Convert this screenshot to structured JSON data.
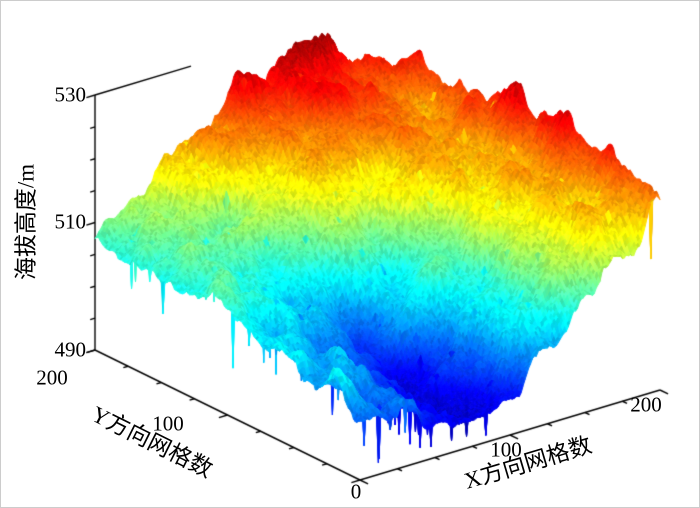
{
  "figure": {
    "background": "#ffffff",
    "border_color": "#cccccc"
  },
  "chart_data": {
    "type": "surface",
    "title": "",
    "xlabel": "X方向网格数",
    "ylabel": "Y方向网格数",
    "zlabel": "海拔高度/m",
    "xlim": [
      0,
      200
    ],
    "ylim": [
      0,
      200
    ],
    "zlim": [
      490,
      530
    ],
    "x_ticks": [
      0,
      100,
      200
    ],
    "y_ticks": [
      0,
      100,
      200
    ],
    "z_ticks": [
      490,
      510,
      530
    ],
    "x_minor_ticks": [
      25,
      50,
      75,
      125,
      150,
      175
    ],
    "y_minor_ticks": [
      25,
      50,
      75,
      125,
      150,
      175
    ],
    "z_minor_ticks": [
      495,
      500,
      505,
      515,
      520,
      525
    ],
    "x_tick_labels": [
      "0",
      "100",
      "200"
    ],
    "y_tick_labels": [
      "200",
      "100"
    ],
    "z_tick_labels": [
      "490",
      "510",
      "530"
    ],
    "colormap": "jet",
    "legend": "none",
    "grid": "off",
    "surface": {
      "grid_order": "rows y=0(front) to y=200(back), cols x=0 to x=200, 25-grid spacing, values in m",
      "elevation_samples": [
        [
          502,
          499,
          494,
          492,
          495,
          502,
          509,
          515,
          519
        ],
        [
          503,
          500,
          495,
          492,
          496,
          504,
          511,
          517,
          521
        ],
        [
          504,
          502,
          497,
          494,
          499,
          506,
          513,
          518,
          523
        ],
        [
          505,
          503,
          500,
          498,
          503,
          509,
          514,
          519,
          524
        ],
        [
          506,
          505,
          503,
          502,
          507,
          512,
          516,
          519,
          525
        ],
        [
          507,
          506,
          506,
          507,
          512,
          516,
          518,
          519,
          524
        ],
        [
          508,
          508,
          509,
          513,
          518,
          521,
          521,
          520,
          522
        ],
        [
          509,
          510,
          512,
          518,
          523,
          526,
          525,
          522,
          521
        ],
        [
          510,
          512,
          516,
          521,
          527,
          528,
          527,
          524,
          522
        ]
      ],
      "detail_noise_amplitude_m": 4,
      "spike_depth_max_m": 12
    }
  }
}
